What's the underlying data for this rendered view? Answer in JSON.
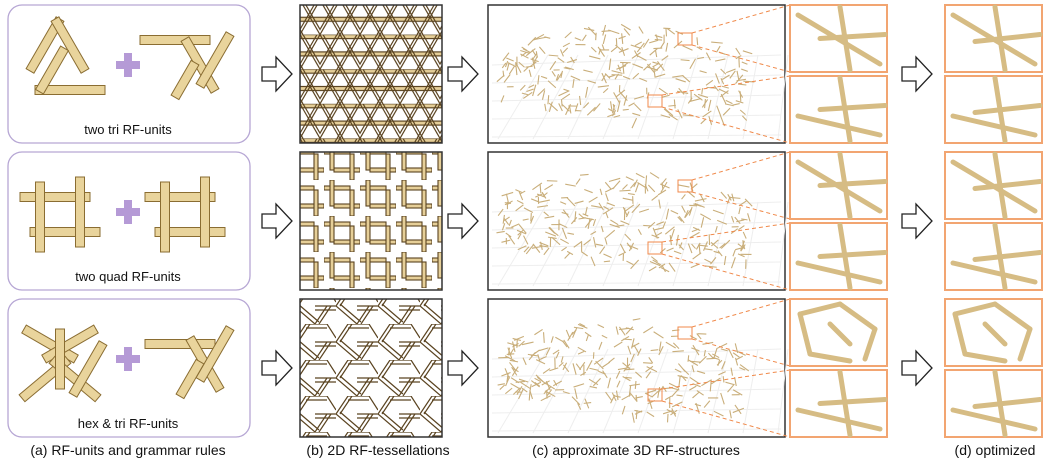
{
  "rows": [
    {
      "label": "two tri RF-units"
    },
    {
      "label": "two quad RF-units"
    },
    {
      "label": "hex & tri RF-units"
    }
  ],
  "captions": [
    "(a) RF-units and grammar rules",
    "(b) 2D RF-tessellations",
    "(c) approximate 3D RF-structures",
    "(d) optimized"
  ]
}
